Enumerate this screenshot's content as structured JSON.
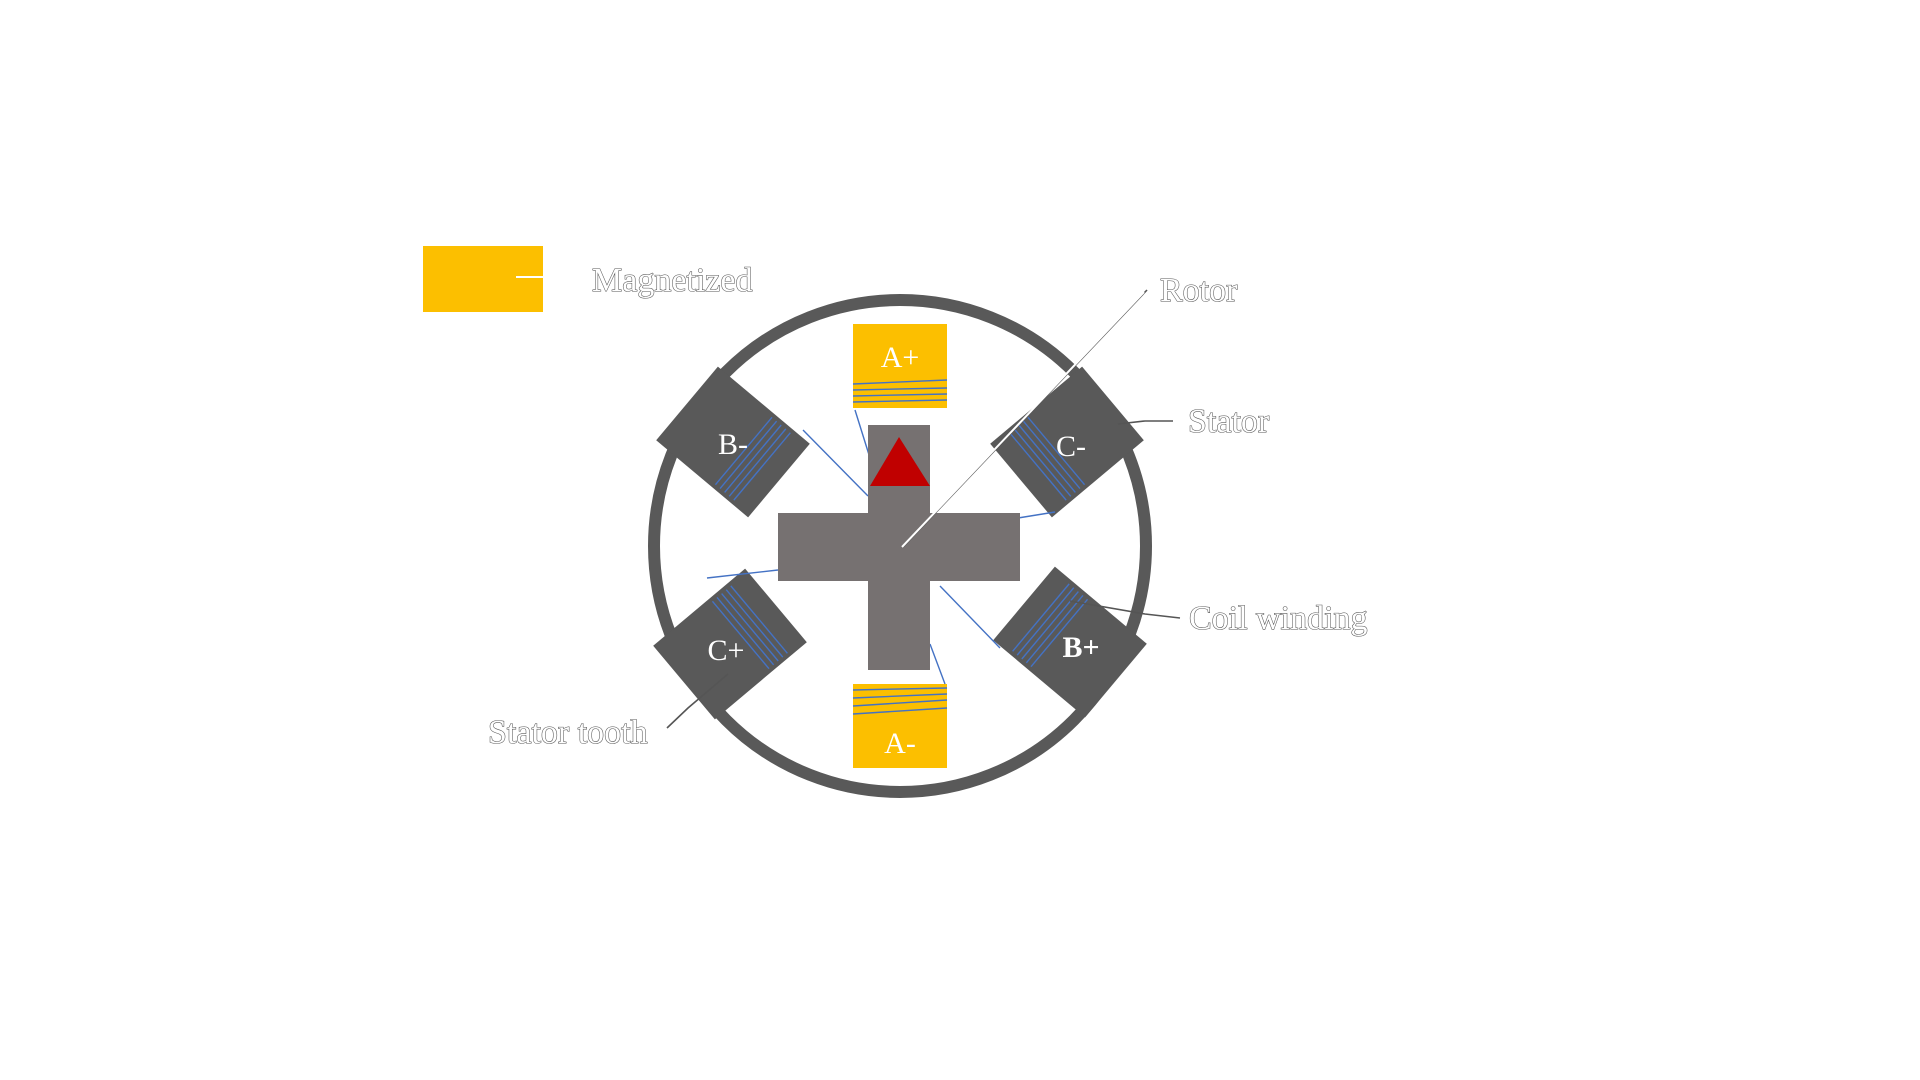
{
  "legend": {
    "label": "Magnetized",
    "swatch_color": "#fcbf00"
  },
  "callouts": {
    "rotor": "Rotor",
    "stator": "Stator",
    "coil_winding": "Coil winding",
    "stator_tooth": "Stator tooth"
  },
  "teeth": {
    "a_plus": "A+",
    "a_minus": "A-",
    "b_plus": "B+",
    "b_minus": "B-",
    "c_plus": "C+",
    "c_minus": "C-"
  },
  "colors": {
    "stator": "#595959",
    "rotor": "#767171",
    "magnetized": "#fcbf00",
    "rotor_marker": "#c00000",
    "coil": "#4472c4"
  }
}
